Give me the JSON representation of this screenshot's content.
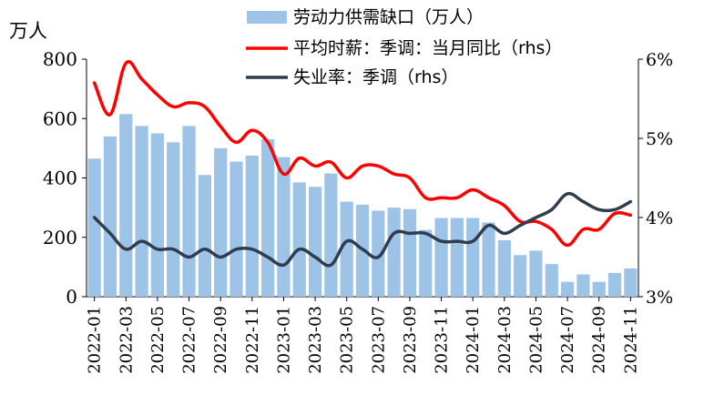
{
  "chart_data": {
    "type": "bar+line",
    "unit_label": "万人",
    "legend": [
      {
        "label": "劳动力供需缺口（万人）",
        "type": "bar",
        "color": "#9DC3E6"
      },
      {
        "label": "平均时薪：季调：当月同比（rhs）",
        "type": "line",
        "color": "#FF0000"
      },
      {
        "label": "失业率：季调（rhs）",
        "type": "line",
        "color": "#2E3D4F"
      }
    ],
    "y_left": {
      "min": 0,
      "max": 800,
      "ticks": [
        "0",
        "200",
        "400",
        "600",
        "800"
      ]
    },
    "y_right": {
      "min": 3,
      "max": 6,
      "ticks": [
        "3%",
        "4%",
        "5%",
        "6%"
      ]
    },
    "x_tick_labels": [
      "2022-01",
      "2022-03",
      "2022-05",
      "2022-07",
      "2022-09",
      "2022-11",
      "2023-01",
      "2023-03",
      "2023-05",
      "2023-07",
      "2023-09",
      "2023-11",
      "2024-01",
      "2024-03",
      "2024-05",
      "2024-07",
      "2024-09",
      "2024-11"
    ],
    "categories": [
      "2022-01",
      "2022-02",
      "2022-03",
      "2022-04",
      "2022-05",
      "2022-06",
      "2022-07",
      "2022-08",
      "2022-09",
      "2022-10",
      "2022-11",
      "2022-12",
      "2023-01",
      "2023-02",
      "2023-03",
      "2023-04",
      "2023-05",
      "2023-06",
      "2023-07",
      "2023-08",
      "2023-09",
      "2023-10",
      "2023-11",
      "2023-12",
      "2024-01",
      "2024-02",
      "2024-03",
      "2024-04",
      "2024-05",
      "2024-06",
      "2024-07",
      "2024-08",
      "2024-09",
      "2024-10",
      "2024-11"
    ],
    "series": [
      {
        "name": "劳动力供需缺口（万人）",
        "axis": "left",
        "values": [
          465,
          540,
          615,
          575,
          550,
          520,
          575,
          410,
          500,
          455,
          475,
          530,
          470,
          385,
          370,
          415,
          320,
          310,
          290,
          300,
          295,
          225,
          265,
          265,
          265,
          250,
          190,
          140,
          155,
          110,
          50,
          75,
          50,
          80,
          95
        ]
      },
      {
        "name": "平均时薪：季调：当月同比（rhs）",
        "axis": "right",
        "values": [
          5.7,
          5.3,
          5.95,
          5.75,
          5.55,
          5.4,
          5.45,
          5.4,
          5.15,
          4.95,
          5.1,
          4.95,
          4.55,
          4.75,
          4.65,
          4.7,
          4.5,
          4.65,
          4.65,
          4.55,
          4.5,
          4.25,
          4.25,
          4.25,
          4.35,
          4.25,
          4.15,
          3.95,
          3.95,
          3.85,
          3.65,
          3.85,
          3.85,
          4.05,
          4.03
        ]
      },
      {
        "name": "失业率：季调（rhs）",
        "axis": "right",
        "values": [
          4.0,
          3.8,
          3.6,
          3.7,
          3.6,
          3.6,
          3.5,
          3.6,
          3.5,
          3.6,
          3.6,
          3.5,
          3.4,
          3.6,
          3.5,
          3.4,
          3.7,
          3.6,
          3.5,
          3.8,
          3.8,
          3.8,
          3.7,
          3.7,
          3.7,
          3.9,
          3.8,
          3.9,
          4.0,
          4.1,
          4.3,
          4.2,
          4.1,
          4.1,
          4.2
        ]
      }
    ]
  }
}
